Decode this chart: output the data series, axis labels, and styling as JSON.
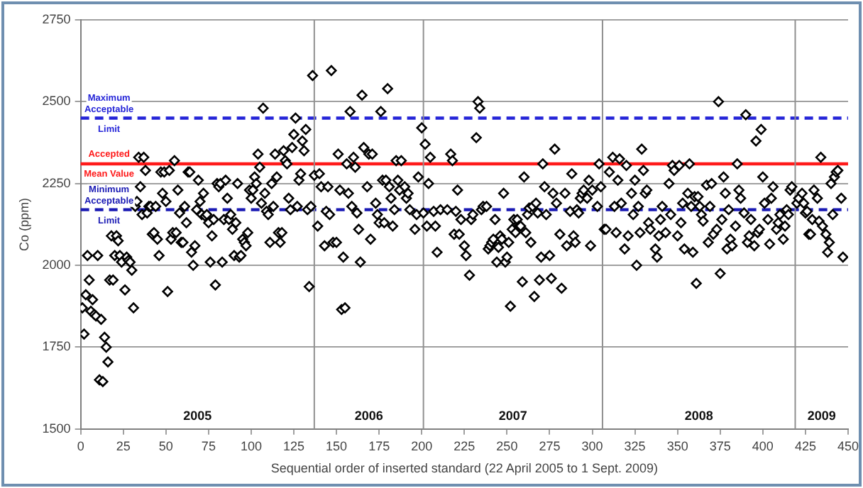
{
  "chart_data": {
    "type": "scatter",
    "xlabel": "Sequential order of inserted standard (22 April 2005 to 1 Sept. 2009)",
    "ylabel": "Co (ppm)",
    "xlim": [
      0,
      450
    ],
    "xticks": [
      0,
      25,
      50,
      75,
      100,
      125,
      150,
      175,
      200,
      225,
      250,
      275,
      300,
      325,
      350,
      375,
      400,
      425,
      450
    ],
    "ylim": [
      1500,
      2750
    ],
    "yticks": [
      1500,
      1750,
      2000,
      2250,
      2500,
      2750
    ],
    "grid": "y",
    "marker": "diamond",
    "legend": false,
    "series": [
      {
        "color": "#000000",
        "x": [
          1,
          2,
          3,
          4,
          5,
          6,
          7,
          8,
          9,
          10,
          11,
          12,
          13,
          14,
          15,
          16,
          17,
          18,
          19,
          20,
          21,
          22,
          23,
          24,
          26,
          27,
          28,
          29,
          30,
          31,
          32,
          33,
          34,
          35,
          36,
          37,
          38,
          39,
          40,
          41,
          42,
          43,
          44,
          45,
          46,
          47,
          48,
          49,
          50,
          51,
          52,
          53,
          54,
          55,
          56,
          57,
          58,
          59,
          60,
          61,
          62,
          63,
          64,
          65,
          66,
          67,
          68,
          69,
          70,
          71,
          72,
          73,
          74,
          75,
          76,
          77,
          78,
          79,
          80,
          81,
          82,
          83,
          84,
          85,
          86,
          87,
          88,
          89,
          90,
          91,
          92,
          93,
          94,
          95,
          96,
          97,
          98,
          99,
          100,
          101,
          102,
          103,
          104,
          105,
          106,
          107,
          108,
          109,
          110,
          111,
          112,
          113,
          114,
          115,
          116,
          117,
          118,
          119,
          120,
          121,
          122,
          123,
          124,
          125,
          126,
          127,
          128,
          129,
          130,
          131,
          132,
          133,
          134,
          136,
          135,
          137,
          139,
          140,
          141,
          143,
          144,
          145,
          146,
          147,
          148,
          150,
          151,
          152,
          153,
          154,
          155,
          156,
          157,
          158,
          159,
          160,
          161,
          162,
          163,
          164,
          165,
          166,
          168,
          169,
          170,
          171,
          173,
          174,
          175,
          176,
          177,
          178,
          179,
          180,
          181,
          182,
          183,
          184,
          185,
          186,
          187,
          188,
          190,
          191,
          192,
          193,
          196,
          197,
          198,
          200,
          201,
          202,
          203,
          204,
          205,
          207,
          208,
          209,
          211,
          215,
          217,
          218,
          219,
          220,
          221,
          222,
          223,
          225,
          226,
          228,
          229,
          230,
          232,
          233,
          234,
          235,
          236,
          238,
          239,
          240,
          241,
          242,
          243,
          244,
          245,
          246,
          247,
          248,
          249,
          250,
          251,
          252,
          253,
          254,
          255,
          256,
          257,
          258,
          259,
          260,
          261,
          262,
          263,
          264,
          265,
          266,
          267,
          268,
          269,
          270,
          271,
          272,
          273,
          275,
          276,
          277,
          278,
          279,
          281,
          282,
          284,
          285,
          287,
          288,
          289,
          290,
          291,
          292,
          293,
          294,
          295,
          297,
          298,
          299,
          300,
          303,
          304,
          305,
          307,
          308,
          310,
          312,
          313,
          314,
          315,
          316,
          317,
          319,
          320,
          321,
          323,
          324,
          325,
          326,
          327,
          328,
          329,
          330,
          331,
          332,
          333,
          334,
          337,
          338,
          339,
          340,
          341,
          343,
          345,
          346,
          347,
          348,
          350,
          351,
          352,
          353,
          354,
          356,
          357,
          358,
          359,
          360,
          361,
          362,
          363,
          364,
          365,
          367,
          368,
          369,
          370,
          371,
          373,
          374,
          375,
          376,
          377,
          378,
          379,
          380,
          381,
          382,
          384,
          385,
          386,
          387,
          389,
          390,
          391,
          392,
          393,
          395,
          396,
          397,
          398,
          399,
          400,
          401,
          403,
          404,
          405,
          406,
          408,
          409,
          410,
          412,
          413,
          414,
          415,
          416,
          417,
          420,
          421,
          423,
          424,
          425,
          426,
          427,
          428,
          429,
          430,
          432,
          433,
          434,
          435,
          437,
          438,
          439,
          440,
          441,
          442,
          443,
          444,
          446,
          447
        ],
        "values": [
          1870,
          1790,
          1910,
          2030,
          1955,
          1860,
          1895,
          1850,
          1845,
          2030,
          1650,
          1835,
          1645,
          1780,
          1750,
          1705,
          1955,
          2090,
          1955,
          2030,
          2090,
          2075,
          2030,
          2010,
          1925,
          2025,
          2015,
          2010,
          1985,
          1870,
          2180,
          2195,
          2330,
          2240,
          2155,
          2330,
          2290,
          2160,
          2180,
          2180,
          2095,
          2100,
          2180,
          2080,
          2030,
          2285,
          2220,
          2285,
          2195,
          1920,
          2290,
          2080,
          2100,
          2320,
          2100,
          2230,
          2160,
          2070,
          2070,
          2180,
          2130,
          2285,
          2285,
          2040,
          2000,
          2060,
          2170,
          2260,
          2195,
          2155,
          2220,
          2150,
          2155,
          2130,
          2010,
          2090,
          2140,
          1940,
          2250,
          2240,
          2250,
          2010,
          2140,
          2260,
          2205,
          2140,
          2155,
          2110,
          2030,
          2130,
          2250,
          2025,
          2030,
          2080,
          2070,
          2060,
          2100,
          2230,
          2205,
          2230,
          2270,
          2250,
          2340,
          2300,
          2190,
          2480,
          2220,
          2165,
          2155,
          2070,
          2250,
          2180,
          2340,
          2270,
          2100,
          2070,
          2100,
          2350,
          2320,
          2310,
          2205,
          2170,
          2360,
          2400,
          2450,
          2180,
          2260,
          2280,
          2380,
          2350,
          2415,
          2170,
          1935,
          2580,
          2180,
          2275,
          2120,
          2280,
          2240,
          2060,
          2165,
          2240,
          2155,
          2595,
          2070,
          2070,
          2340,
          2230,
          1865,
          2025,
          1870,
          2310,
          2220,
          2470,
          2180,
          2330,
          2300,
          2160,
          2110,
          2010,
          2520,
          2360,
          2240,
          2340,
          2080,
          2340,
          2190,
          2155,
          2130,
          2470,
          2260,
          2130,
          2260,
          2540,
          2240,
          2205,
          2120,
          2170,
          2320,
          2260,
          2230,
          2320,
          2240,
          2205,
          2220,
          2170,
          2110,
          2155,
          2270,
          2420,
          2160,
          2370,
          2120,
          2250,
          2330,
          2165,
          2120,
          2040,
          2170,
          2170,
          2340,
          2320,
          2095,
          2165,
          2230,
          2095,
          2140,
          2060,
          2030,
          1970,
          2140,
          2155,
          2390,
          2500,
          2480,
          2170,
          2180,
          2180,
          2050,
          2060,
          2070,
          2080,
          2140,
          2010,
          2055,
          2090,
          2080,
          2220,
          2010,
          2025,
          2070,
          1875,
          2110,
          2140,
          2100,
          2140,
          2120,
          2120,
          1950,
          2270,
          2100,
          2155,
          2175,
          2070,
          2180,
          1905,
          2190,
          2160,
          1955,
          2025,
          2310,
          2240,
          2155,
          2030,
          1960,
          2220,
          2355,
          2190,
          2095,
          1930,
          2220,
          2060,
          2165,
          2280,
          2090,
          2070,
          2170,
          2160,
          2205,
          2220,
          2230,
          2205,
          2260,
          2060,
          2230,
          2180,
          2310,
          2240,
          2110,
          2110,
          2285,
          2330,
          2180,
          2100,
          2260,
          2325,
          2190,
          2050,
          2305,
          2090,
          2220,
          2155,
          2260,
          2000,
          2180,
          2100,
          2355,
          2290,
          2220,
          2230,
          2130,
          2110,
          2050,
          2025,
          2090,
          2140,
          2180,
          2100,
          2250,
          2155,
          2305,
          2290,
          2090,
          2305,
          2130,
          2190,
          2050,
          2220,
          2310,
          2180,
          2040,
          2210,
          1945,
          2210,
          2180,
          2155,
          2135,
          2245,
          2070,
          2180,
          2250,
          2095,
          2110,
          2500,
          1975,
          2140,
          2270,
          2220,
          2050,
          2170,
          2080,
          2060,
          2120,
          2310,
          2230,
          2205,
          2160,
          2460,
          2070,
          2090,
          2140,
          2060,
          2380,
          2100,
          2110,
          2415,
          2270,
          2190,
          2140,
          2065,
          2205,
          2240,
          2110,
          2130,
          2155,
          2080,
          2120,
          2170,
          2155,
          2230,
          2240,
          2190,
          2205,
          2220,
          2190,
          2160,
          2165,
          2095,
          2095,
          2140,
          2230,
          2205,
          2135,
          2330,
          2120,
          2095,
          2040,
          2070,
          2250,
          2155,
          2270,
          2285,
          2290,
          2205,
          2025
        ]
      }
    ],
    "ref_lines": [
      {
        "axis": "y",
        "value": 2450,
        "label": "Maximum Acceptable Limit",
        "color": "#2424d8",
        "line_style": "dashed"
      },
      {
        "axis": "y",
        "value": 2310,
        "label": "Accepted Mean Value",
        "color": "#ff1a1a",
        "line_style": "solid"
      },
      {
        "axis": "y",
        "value": 2170,
        "label": "Minimum Acceptable Limit",
        "color": "#1a1ab4",
        "line_style": "dashed"
      },
      {
        "axis": "x",
        "value": 137,
        "color": "#909090",
        "line_style": "solid"
      },
      {
        "axis": "x",
        "value": 201,
        "color": "#909090",
        "line_style": "solid"
      },
      {
        "axis": "x",
        "value": 306,
        "color": "#909090",
        "line_style": "solid"
      },
      {
        "axis": "x",
        "value": 419,
        "color": "#909090",
        "line_style": "solid"
      }
    ],
    "annotations": [
      "2005",
      "2006",
      "2007",
      "2008",
      "2009"
    ]
  }
}
